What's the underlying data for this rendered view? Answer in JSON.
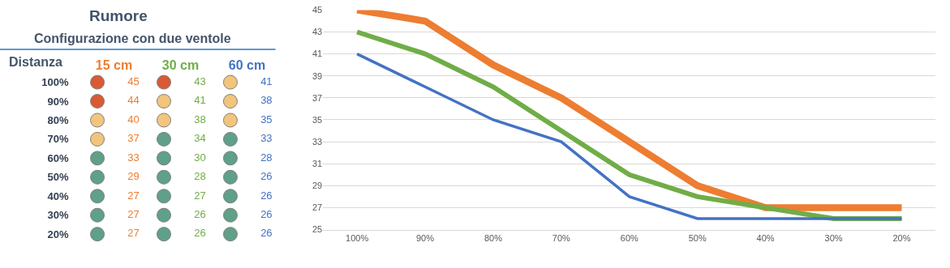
{
  "chart_data": [
    {
      "type": "heatmap",
      "title": "Rumore",
      "subtitle": "Configurazione con due ventole",
      "annotations": [
        "Distanza"
      ],
      "categories": [
        "15 cm",
        "30 cm",
        "60 cm"
      ],
      "y_categories": [
        "100%",
        "90%",
        "80%",
        "70%",
        "60%",
        "50%",
        "40%",
        "30%",
        "20%"
      ],
      "cells": [
        [
          45,
          43,
          41
        ],
        [
          44,
          41,
          38
        ],
        [
          40,
          38,
          35
        ],
        [
          37,
          34,
          33
        ],
        [
          33,
          30,
          28
        ],
        [
          29,
          28,
          26
        ],
        [
          27,
          27,
          26
        ],
        [
          27,
          26,
          26
        ],
        [
          27,
          26,
          26
        ]
      ],
      "data_labels": true
    },
    {
      "type": "line",
      "categories": [
        "100%",
        "90%",
        "80%",
        "70%",
        "60%",
        "50%",
        "40%",
        "30%",
        "20%"
      ],
      "series": [
        {
          "color": "#ed7d31",
          "values": [
            45,
            44,
            40,
            37,
            33,
            29,
            27,
            27,
            27
          ]
        },
        {
          "color": "#70ad47",
          "values": [
            43,
            41,
            38,
            34,
            30,
            28,
            27,
            26,
            26
          ]
        },
        {
          "color": "#4472c4",
          "values": [
            41,
            38,
            35,
            33,
            28,
            26,
            26,
            26,
            26
          ]
        }
      ],
      "ylim": [
        25,
        45
      ],
      "yticks": [
        25,
        27,
        29,
        31,
        33,
        35,
        37,
        39,
        41,
        43,
        45
      ],
      "grid": "y",
      "legend": false,
      "marker": "none",
      "line_style": "solid"
    }
  ]
}
